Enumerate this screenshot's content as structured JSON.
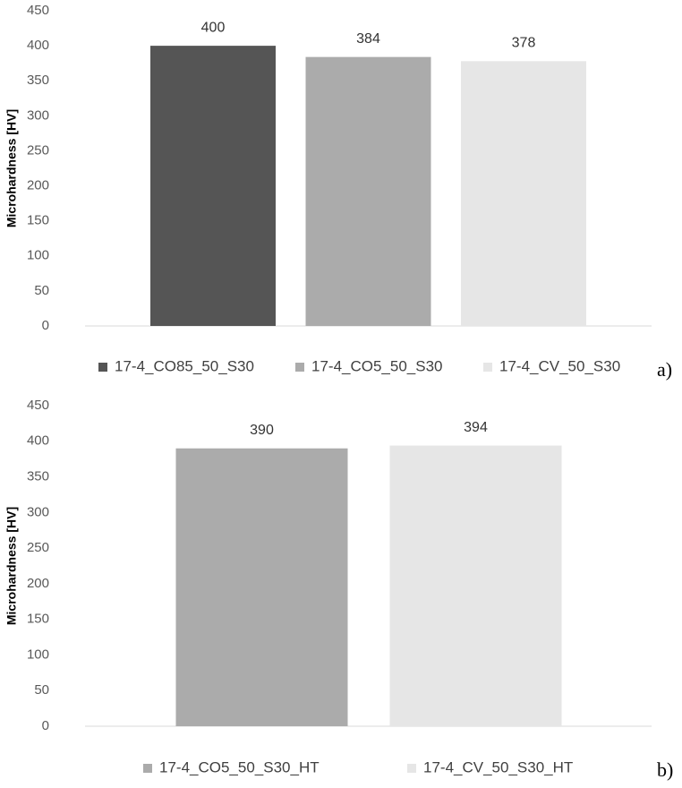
{
  "chart_data": [
    {
      "type": "bar",
      "ylabel": "Microhardness [HV]",
      "ylim": [
        0,
        450
      ],
      "yticks": [
        0,
        50,
        100,
        150,
        200,
        250,
        300,
        350,
        400,
        450
      ],
      "grid": false,
      "legend": "bottom",
      "panel_label": "a)",
      "series": [
        {
          "name": "17-4_CO85_50_S30",
          "color": "#555555",
          "values": [
            400
          ]
        },
        {
          "name": "17-4_CO5_50_S30",
          "color": "#ababab",
          "values": [
            384
          ]
        },
        {
          "name": "17-4_CV_50_S30",
          "color": "#e6e6e6",
          "values": [
            378
          ]
        }
      ]
    },
    {
      "type": "bar",
      "ylabel": "Microhardness [HV]",
      "ylim": [
        0,
        450
      ],
      "yticks": [
        0,
        50,
        100,
        150,
        200,
        250,
        300,
        350,
        400,
        450
      ],
      "grid": false,
      "legend": "bottom",
      "panel_label": "b)",
      "series": [
        {
          "name": "17-4_CO5_50_S30_HT",
          "color": "#ababab",
          "values": [
            390
          ]
        },
        {
          "name": "17-4_CV_50_S30_HT",
          "color": "#e6e6e6",
          "values": [
            394
          ]
        }
      ]
    }
  ]
}
